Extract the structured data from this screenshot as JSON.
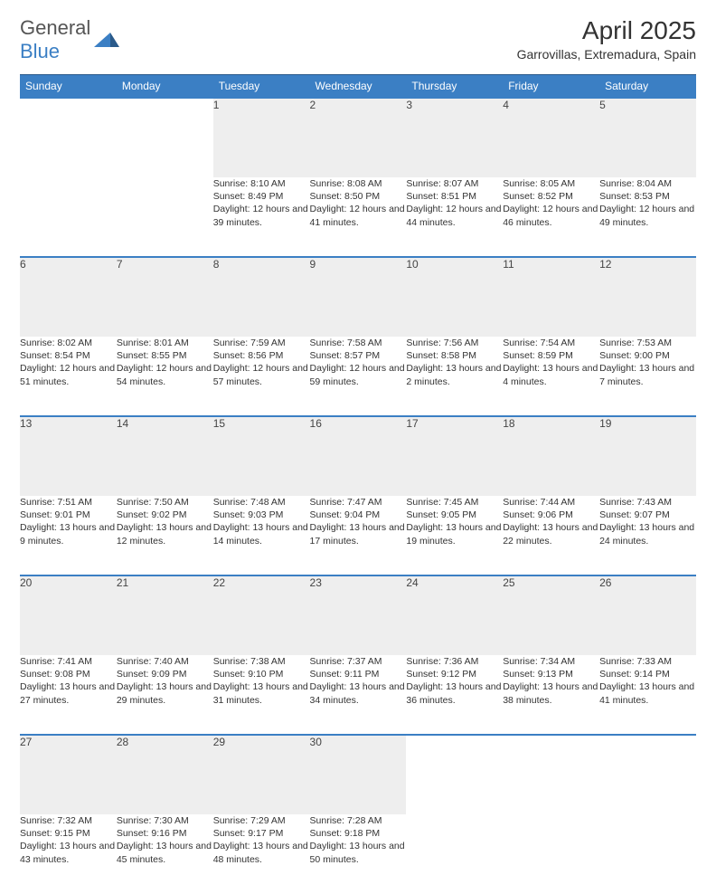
{
  "logo": {
    "text1": "General",
    "text2": "Blue"
  },
  "title": "April 2025",
  "location": "Garrovillas, Extremadura, Spain",
  "colors": {
    "header_bg": "#3b7fc4",
    "header_text": "#ffffff",
    "daynum_bg": "#eeeeee",
    "row_divider": "#3b7fc4",
    "body_text": "#333333",
    "logo_gray": "#555555",
    "logo_blue": "#3b7fc4",
    "page_bg": "#ffffff"
  },
  "typography": {
    "title_fontsize": 28,
    "location_fontsize": 14,
    "dayheader_fontsize": 12,
    "daynum_fontsize": 12,
    "cell_fontsize": 10.5
  },
  "day_headers": [
    "Sunday",
    "Monday",
    "Tuesday",
    "Wednesday",
    "Thursday",
    "Friday",
    "Saturday"
  ],
  "weeks": [
    {
      "nums": [
        "",
        "",
        "1",
        "2",
        "3",
        "4",
        "5"
      ],
      "cells": [
        {},
        {},
        {
          "sunrise": "8:10 AM",
          "sunset": "8:49 PM",
          "daylight": "12 hours and 39 minutes."
        },
        {
          "sunrise": "8:08 AM",
          "sunset": "8:50 PM",
          "daylight": "12 hours and 41 minutes."
        },
        {
          "sunrise": "8:07 AM",
          "sunset": "8:51 PM",
          "daylight": "12 hours and 44 minutes."
        },
        {
          "sunrise": "8:05 AM",
          "sunset": "8:52 PM",
          "daylight": "12 hours and 46 minutes."
        },
        {
          "sunrise": "8:04 AM",
          "sunset": "8:53 PM",
          "daylight": "12 hours and 49 minutes."
        }
      ]
    },
    {
      "nums": [
        "6",
        "7",
        "8",
        "9",
        "10",
        "11",
        "12"
      ],
      "cells": [
        {
          "sunrise": "8:02 AM",
          "sunset": "8:54 PM",
          "daylight": "12 hours and 51 minutes."
        },
        {
          "sunrise": "8:01 AM",
          "sunset": "8:55 PM",
          "daylight": "12 hours and 54 minutes."
        },
        {
          "sunrise": "7:59 AM",
          "sunset": "8:56 PM",
          "daylight": "12 hours and 57 minutes."
        },
        {
          "sunrise": "7:58 AM",
          "sunset": "8:57 PM",
          "daylight": "12 hours and 59 minutes."
        },
        {
          "sunrise": "7:56 AM",
          "sunset": "8:58 PM",
          "daylight": "13 hours and 2 minutes."
        },
        {
          "sunrise": "7:54 AM",
          "sunset": "8:59 PM",
          "daylight": "13 hours and 4 minutes."
        },
        {
          "sunrise": "7:53 AM",
          "sunset": "9:00 PM",
          "daylight": "13 hours and 7 minutes."
        }
      ]
    },
    {
      "nums": [
        "13",
        "14",
        "15",
        "16",
        "17",
        "18",
        "19"
      ],
      "cells": [
        {
          "sunrise": "7:51 AM",
          "sunset": "9:01 PM",
          "daylight": "13 hours and 9 minutes."
        },
        {
          "sunrise": "7:50 AM",
          "sunset": "9:02 PM",
          "daylight": "13 hours and 12 minutes."
        },
        {
          "sunrise": "7:48 AM",
          "sunset": "9:03 PM",
          "daylight": "13 hours and 14 minutes."
        },
        {
          "sunrise": "7:47 AM",
          "sunset": "9:04 PM",
          "daylight": "13 hours and 17 minutes."
        },
        {
          "sunrise": "7:45 AM",
          "sunset": "9:05 PM",
          "daylight": "13 hours and 19 minutes."
        },
        {
          "sunrise": "7:44 AM",
          "sunset": "9:06 PM",
          "daylight": "13 hours and 22 minutes."
        },
        {
          "sunrise": "7:43 AM",
          "sunset": "9:07 PM",
          "daylight": "13 hours and 24 minutes."
        }
      ]
    },
    {
      "nums": [
        "20",
        "21",
        "22",
        "23",
        "24",
        "25",
        "26"
      ],
      "cells": [
        {
          "sunrise": "7:41 AM",
          "sunset": "9:08 PM",
          "daylight": "13 hours and 27 minutes."
        },
        {
          "sunrise": "7:40 AM",
          "sunset": "9:09 PM",
          "daylight": "13 hours and 29 minutes."
        },
        {
          "sunrise": "7:38 AM",
          "sunset": "9:10 PM",
          "daylight": "13 hours and 31 minutes."
        },
        {
          "sunrise": "7:37 AM",
          "sunset": "9:11 PM",
          "daylight": "13 hours and 34 minutes."
        },
        {
          "sunrise": "7:36 AM",
          "sunset": "9:12 PM",
          "daylight": "13 hours and 36 minutes."
        },
        {
          "sunrise": "7:34 AM",
          "sunset": "9:13 PM",
          "daylight": "13 hours and 38 minutes."
        },
        {
          "sunrise": "7:33 AM",
          "sunset": "9:14 PM",
          "daylight": "13 hours and 41 minutes."
        }
      ]
    },
    {
      "nums": [
        "27",
        "28",
        "29",
        "30",
        "",
        "",
        ""
      ],
      "cells": [
        {
          "sunrise": "7:32 AM",
          "sunset": "9:15 PM",
          "daylight": "13 hours and 43 minutes."
        },
        {
          "sunrise": "7:30 AM",
          "sunset": "9:16 PM",
          "daylight": "13 hours and 45 minutes."
        },
        {
          "sunrise": "7:29 AM",
          "sunset": "9:17 PM",
          "daylight": "13 hours and 48 minutes."
        },
        {
          "sunrise": "7:28 AM",
          "sunset": "9:18 PM",
          "daylight": "13 hours and 50 minutes."
        },
        {},
        {},
        {}
      ]
    }
  ],
  "labels": {
    "sunrise": "Sunrise: ",
    "sunset": "Sunset: ",
    "daylight": "Daylight: "
  }
}
